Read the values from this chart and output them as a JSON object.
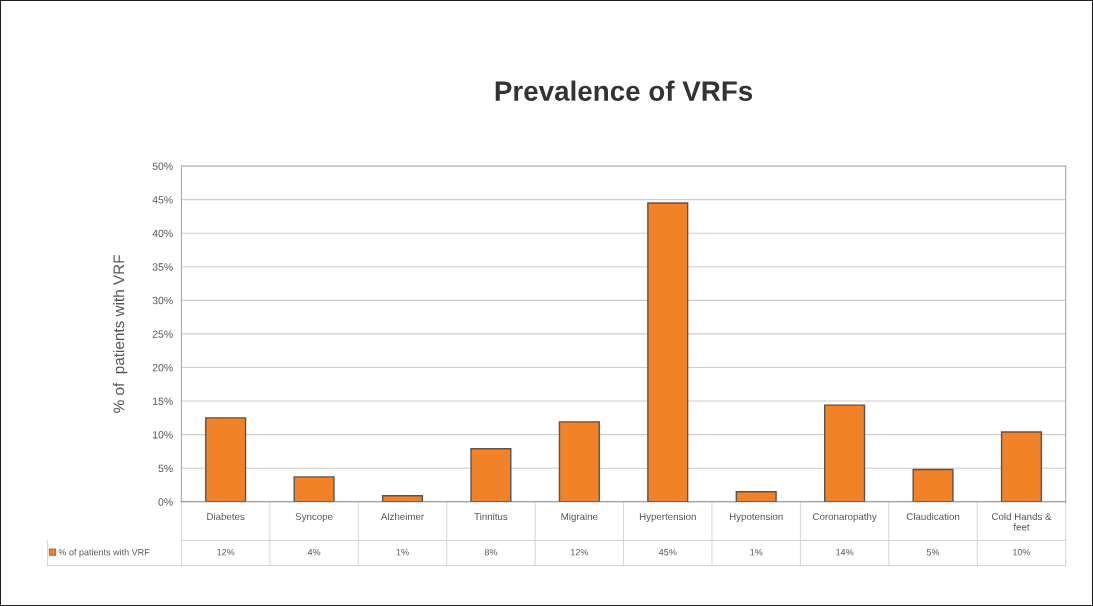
{
  "chart_data": {
    "type": "bar",
    "title": "Prevalence of VRFs",
    "ylabel": "% of  patients with VRF",
    "categories": [
      "Diabetes",
      "Syncope",
      "Alzheimer",
      "Tinnitus",
      "Migraine",
      "Hypertension",
      "Hypotension",
      "Coronaropathy",
      "Claudication",
      "Cold Hands & feet"
    ],
    "series": [
      {
        "name": "% of patients with VRF",
        "color": "#f28228",
        "values": [
          12.5,
          3.7,
          0.9,
          7.9,
          11.9,
          44.5,
          1.5,
          14.4,
          4.8,
          10.4
        ],
        "value_labels": [
          "12%",
          "4%",
          "1%",
          "8%",
          "12%",
          "45%",
          "1%",
          "14%",
          "5%",
          "10%"
        ]
      }
    ],
    "ylim": [
      0,
      50
    ],
    "yticks": [
      {
        "value": 0,
        "label": "0%"
      },
      {
        "value": 5,
        "label": "5%"
      },
      {
        "value": 10,
        "label": "10%"
      },
      {
        "value": 15,
        "label": "15%"
      },
      {
        "value": 20,
        "label": "20%"
      },
      {
        "value": 25,
        "label": "25%"
      },
      {
        "value": 30,
        "label": "30%"
      },
      {
        "value": 35,
        "label": "35%"
      },
      {
        "value": 40,
        "label": "40%"
      },
      {
        "value": 45,
        "label": "45%"
      },
      {
        "value": 50,
        "label": "50%"
      }
    ],
    "grid": "y",
    "legend": "bottom"
  }
}
